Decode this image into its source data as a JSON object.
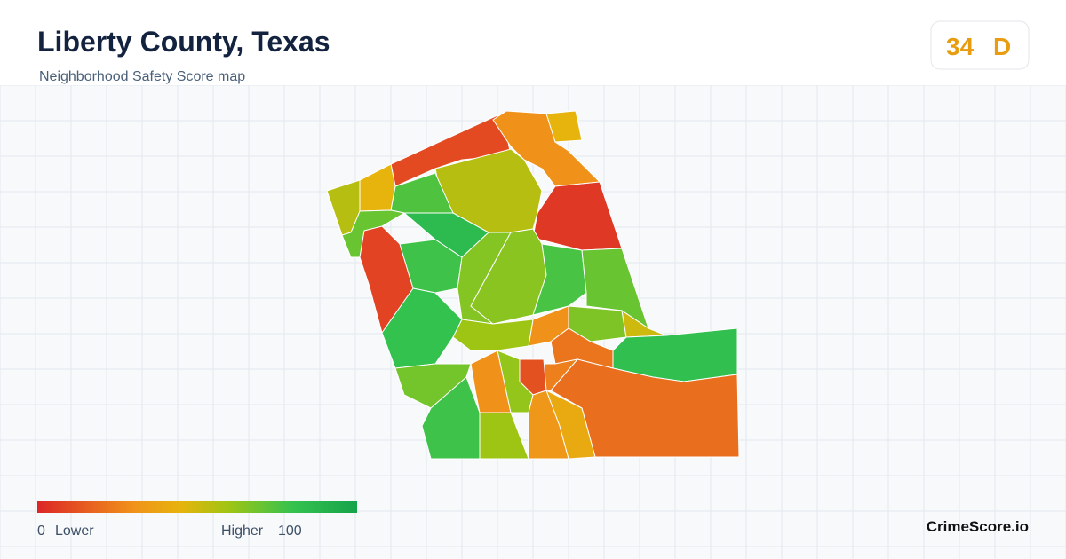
{
  "header": {
    "title": "Liberty County, Texas",
    "subtitle": "Neighborhood Safety Score map"
  },
  "score": {
    "value": 34,
    "grade": "D"
  },
  "legend": {
    "min": 0,
    "low_label": "Lower",
    "high_label": "Higher",
    "max": 100
  },
  "regions": [
    {
      "score": 10
    },
    {
      "score": 30
    },
    {
      "score": 45
    },
    {
      "score": 5
    },
    {
      "score": 55
    },
    {
      "score": 55
    },
    {
      "score": 45
    },
    {
      "score": 75
    },
    {
      "score": 85
    },
    {
      "score": 70
    },
    {
      "score": 8
    },
    {
      "score": 78
    },
    {
      "score": 65
    },
    {
      "score": 64
    },
    {
      "score": 76
    },
    {
      "score": 70
    },
    {
      "score": 80
    },
    {
      "score": 66
    },
    {
      "score": 50
    },
    {
      "score": 30
    },
    {
      "score": 82
    },
    {
      "score": 60
    },
    {
      "score": 22
    },
    {
      "score": 20
    },
    {
      "score": 25
    },
    {
      "score": 12
    },
    {
      "score": 68
    },
    {
      "score": 78
    },
    {
      "score": 30
    },
    {
      "score": 60
    },
    {
      "score": 62
    },
    {
      "score": 32
    },
    {
      "score": 40
    }
  ],
  "brand": "CrimeScore.io"
}
